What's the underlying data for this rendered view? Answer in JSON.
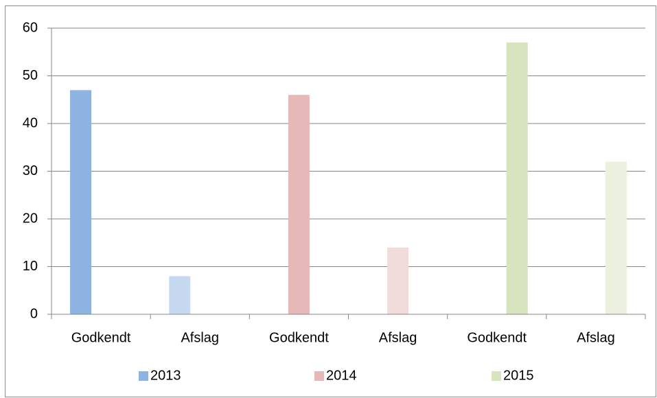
{
  "chart_data": {
    "type": "bar",
    "categories": [
      "Godkendt",
      "Afslag",
      "Godkendt",
      "Afslag",
      "Godkendt",
      "Afslag"
    ],
    "series": [
      {
        "name": "2013",
        "color": "#8db3e2",
        "colors": [
          "#8db3e2",
          "#c6d9f1",
          null,
          null,
          null,
          null
        ],
        "values": [
          47,
          8,
          null,
          null,
          null,
          null
        ]
      },
      {
        "name": "2014",
        "color": "#e6b9b8",
        "colors": [
          null,
          null,
          "#e6b9b8",
          "#f2dcdb",
          null,
          null
        ],
        "values": [
          null,
          null,
          46,
          14,
          null,
          null
        ]
      },
      {
        "name": "2015",
        "color": "#d7e4bd",
        "colors": [
          null,
          null,
          null,
          null,
          "#d7e4bd",
          "#ebf1de"
        ],
        "values": [
          null,
          null,
          null,
          null,
          57,
          32
        ]
      }
    ],
    "ylim": [
      0,
      60
    ],
    "yticks": [
      0,
      10,
      20,
      30,
      40,
      50,
      60
    ],
    "grid": true,
    "legend": "bottom"
  }
}
